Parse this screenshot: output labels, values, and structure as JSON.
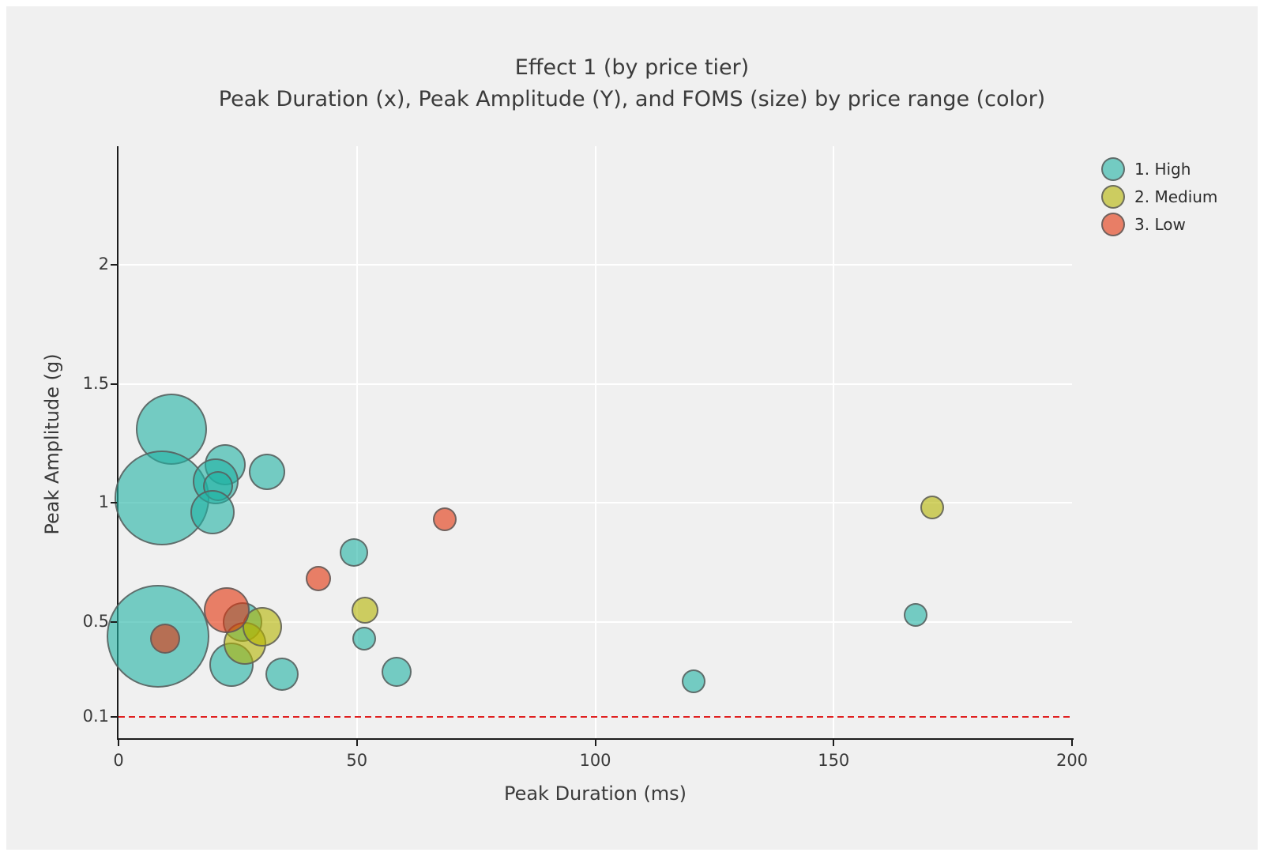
{
  "frame": {
    "background": "#f0f0f0",
    "border_color": "#ffffff"
  },
  "title": {
    "line1": "Effect 1 (by price tier)",
    "line2": "Peak Duration (x), Peak Amplitude (Y), and FOMS (size) by price range (color)"
  },
  "legend": {
    "position": "top-right",
    "stroke": "#7d7d7d",
    "items": [
      {
        "label": "1. High",
        "fill": "rgba(32,178,164,0.6)"
      },
      {
        "label": "2. Medium",
        "fill": "rgba(180,180,0,0.6)"
      },
      {
        "label": "3. Low",
        "fill": "rgba(227,50,10,0.6)"
      }
    ]
  },
  "chart_data": {
    "type": "scatter",
    "subtype": "bubble",
    "title": "Effect 1 (by price tier)",
    "subtitle": "Peak Duration (x), Peak Amplitude (Y), and FOMS (size) by price range (color)",
    "xlabel": "Peak Duration (ms)",
    "ylabel": "Peak Amplitude (g)",
    "size_variable": "FOMS",
    "color_variable": "price range",
    "xlim": [
      0,
      200
    ],
    "ylim": [
      0.01,
      2.5
    ],
    "x_ticks": [
      0,
      50,
      100,
      150,
      200
    ],
    "x_tick_labels": [
      "0",
      "50",
      "100",
      "150",
      "200"
    ],
    "y_ticks": [
      0.1,
      0.5,
      1,
      1.5,
      2
    ],
    "y_tick_labels": [
      "0.1",
      "0.5",
      "1",
      "1.5",
      "2"
    ],
    "grid": true,
    "grid_x": [
      50,
      100,
      150
    ],
    "grid_y": [
      0.5,
      1,
      1.5,
      2
    ],
    "grid_color": "#ffffff",
    "axis_color": "#1c1c1c",
    "reference_line": {
      "y": 0.1,
      "style": "dashed",
      "color": "#e02020"
    },
    "legend_position": "top-right",
    "series": [
      {
        "name": "1. High",
        "fill": "rgba(32,178,164,0.6)",
        "stroke": "#5c5c5c",
        "points": [
          {
            "x": 11.1,
            "y": 1.31,
            "r": 45
          },
          {
            "x": 9.1,
            "y": 1.02,
            "r": 60
          },
          {
            "x": 22.4,
            "y": 1.16,
            "r": 26
          },
          {
            "x": 20.4,
            "y": 1.09,
            "r": 29
          },
          {
            "x": 20.8,
            "y": 1.07,
            "r": 19
          },
          {
            "x": 19.7,
            "y": 0.96,
            "r": 28
          },
          {
            "x": 31.2,
            "y": 1.13,
            "r": 23
          },
          {
            "x": 8.3,
            "y": 0.44,
            "r": 65
          },
          {
            "x": 26.0,
            "y": 0.5,
            "r": 25
          },
          {
            "x": 23.7,
            "y": 0.32,
            "r": 28
          },
          {
            "x": 34.3,
            "y": 0.28,
            "r": 21
          },
          {
            "x": 49.4,
            "y": 0.79,
            "r": 18
          },
          {
            "x": 51.5,
            "y": 0.43,
            "r": 15
          },
          {
            "x": 58.3,
            "y": 0.29,
            "r": 19
          },
          {
            "x": 120.6,
            "y": 0.25,
            "r": 15
          },
          {
            "x": 167.2,
            "y": 0.53,
            "r": 15
          }
        ]
      },
      {
        "name": "2. Medium",
        "fill": "rgba(180,180,0,0.6)",
        "stroke": "#5c5c5c",
        "points": [
          {
            "x": 26.5,
            "y": 0.41,
            "r": 27
          },
          {
            "x": 30.1,
            "y": 0.48,
            "r": 25
          },
          {
            "x": 51.7,
            "y": 0.55,
            "r": 17
          },
          {
            "x": 170.7,
            "y": 0.98,
            "r": 15
          }
        ]
      },
      {
        "name": "3. Low",
        "fill": "rgba(227,50,10,0.6)",
        "stroke": "#5c5c5c",
        "points": [
          {
            "x": 9.8,
            "y": 0.43,
            "r": 19
          },
          {
            "x": 22.7,
            "y": 0.55,
            "r": 29
          },
          {
            "x": 41.9,
            "y": 0.68,
            "r": 16
          },
          {
            "x": 68.5,
            "y": 0.93,
            "r": 15
          }
        ]
      }
    ]
  }
}
